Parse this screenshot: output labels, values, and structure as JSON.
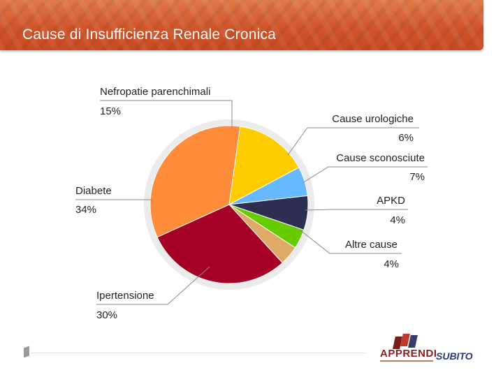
{
  "header": {
    "title": "Cause di Insufficienza Renale Cronica"
  },
  "chart_data": {
    "type": "pie",
    "slices": [
      {
        "label": "Nefropatie parenchimali",
        "value": 15,
        "display": "15%",
        "color": "#ffcc00"
      },
      {
        "label": "Cause urologiche",
        "value": 6,
        "display": "6%",
        "color": "#66b8ff"
      },
      {
        "label": "Cause sconosciute",
        "value": 7,
        "display": "7%",
        "color": "#2e2e52"
      },
      {
        "label": "APKD",
        "value": 4,
        "display": "4%",
        "color": "#66cc00"
      },
      {
        "label": "Altre cause",
        "value": 4,
        "display": "4%",
        "color": "#e0aa66"
      },
      {
        "label": "Ipertensione",
        "value": 30,
        "display": "30%",
        "color": "#a50026"
      },
      {
        "label": "Diabete",
        "value": 34,
        "display": "34%",
        "color": "#ff8c3a"
      }
    ]
  },
  "footer": {
    "logo_text": "APPRENDI",
    "brand_text": "SUBITO"
  }
}
